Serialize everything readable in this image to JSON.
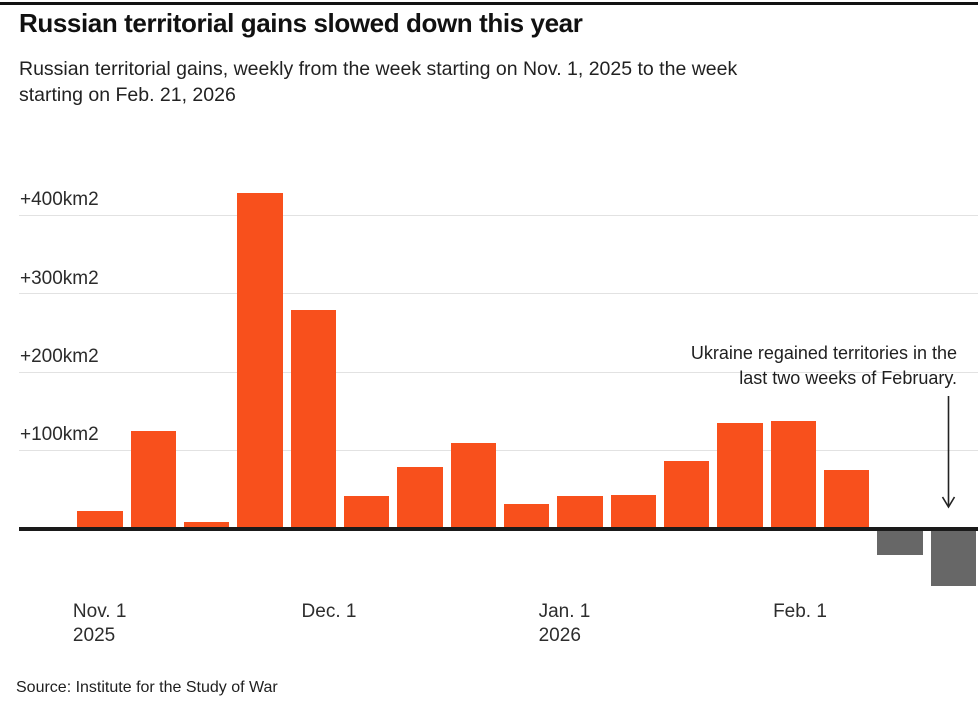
{
  "chart_data": {
    "type": "bar",
    "title": "Russian territorial gains slowed down this year",
    "subtitle_lines": [
      "Russian territorial gains, weekly from the week starting on Nov. 1, 2025 to the week",
      "starting on Feb. 21, 2026"
    ],
    "unit": "km2",
    "categories": [
      "Week of Nov. 1, 2025",
      "Week of Nov. 8, 2025",
      "Week of Nov. 15, 2025",
      "Week of Nov. 22, 2025",
      "Week of Nov. 29, 2025",
      "Week of Dec. 6, 2025",
      "Week of Dec. 13, 2025",
      "Week of Dec. 20, 2025",
      "Week of Dec. 27, 2025",
      "Week of Jan. 3, 2026",
      "Week of Jan. 10, 2026",
      "Week of Jan. 17, 2026",
      "Week of Jan. 24, 2026",
      "Week of Jan. 31, 2026",
      "Week of Feb. 7, 2026",
      "Week of Feb. 14, 2026",
      "Week of Feb. 21, 2026"
    ],
    "values": [
      21,
      122,
      6,
      427,
      277,
      39,
      76,
      107,
      30,
      39,
      41,
      84,
      133,
      135,
      73,
      -33,
      -73
    ],
    "y_ticks": [
      {
        "value": 400,
        "label": "+400km2"
      },
      {
        "value": 300,
        "label": "+300km2"
      },
      {
        "value": 200,
        "label": "+200km2"
      },
      {
        "value": 100,
        "label": "+100km2"
      }
    ],
    "x_ticks": [
      {
        "line1": "Nov. 1",
        "line2": "2025"
      },
      {
        "line1": "Dec. 1",
        "line2": ""
      },
      {
        "line1": "Jan. 1",
        "line2": "2026"
      },
      {
        "line1": "Feb. 1",
        "line2": ""
      }
    ],
    "ylim": [
      -100,
      440
    ],
    "grid": true,
    "legend": false,
    "annotation_lines": [
      "Ukraine regained territories in the",
      "last two weeks of February."
    ],
    "colors": {
      "positive_bar": "#f8501c",
      "negative_bar": "#676767",
      "gridline": "#e2e2e2",
      "axis_line": "#1a1a1a"
    },
    "source": "Source: Institute for the Study of War"
  }
}
